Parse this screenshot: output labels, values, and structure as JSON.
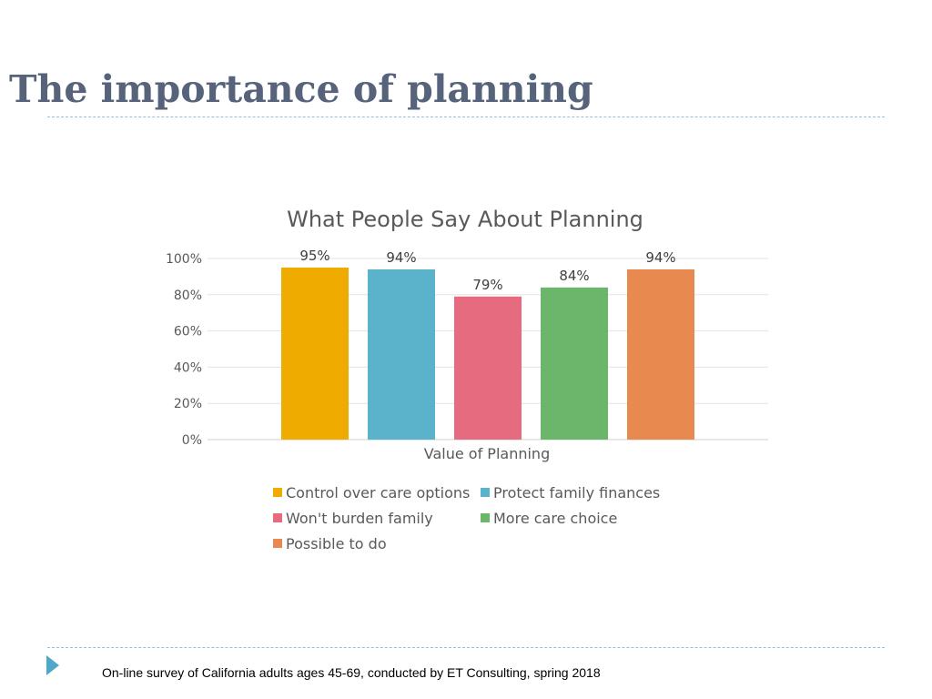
{
  "slide": {
    "title": "The importance of planning",
    "footer": "On-line survey of California adults ages 45-69, conducted by ET Consulting, spring 2018"
  },
  "chart_data": {
    "type": "bar",
    "title": "What People Say About Planning",
    "xlabel": "Value of Planning",
    "ylabel": "",
    "ylim": [
      0,
      1
    ],
    "yticks": [
      "0%",
      "20%",
      "40%",
      "60%",
      "80%",
      "100%"
    ],
    "grid": true,
    "legend_position": "bottom",
    "series": [
      {
        "name": "Control over care options",
        "value": 0.95,
        "label": "95%",
        "color": "#f0ab00"
      },
      {
        "name": "Protect family finances",
        "value": 0.94,
        "label": "94%",
        "color": "#5ab3cb"
      },
      {
        "name": "Won't burden family",
        "value": 0.79,
        "label": "79%",
        "color": "#e66b7e"
      },
      {
        "name": "More care choice",
        "value": 0.84,
        "label": "84%",
        "color": "#6bb66b"
      },
      {
        "name": "Possible to do",
        "value": 0.94,
        "label": "94%",
        "color": "#e88a50"
      }
    ]
  }
}
